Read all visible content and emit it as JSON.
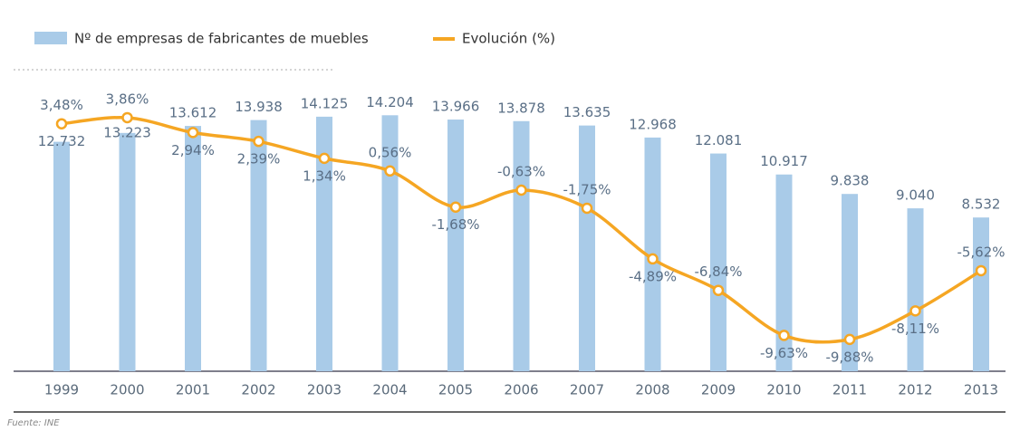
{
  "chart_data": {
    "type": "bar_line",
    "categories": [
      "1999",
      "2000",
      "2001",
      "2002",
      "2003",
      "2004",
      "2005",
      "2006",
      "2007",
      "2008",
      "2009",
      "2010",
      "2011",
      "2012",
      "2013"
    ],
    "series": [
      {
        "name": "Nº de empresas de fabricantes de muebles",
        "type": "bar",
        "color": "#a9cbe8",
        "values": [
          12732,
          13223,
          13612,
          13938,
          14125,
          14204,
          13966,
          13878,
          13635,
          12968,
          12081,
          10917,
          9838,
          9040,
          8532
        ],
        "value_labels": [
          "12.732",
          "13.223",
          "13.612",
          "13.938",
          "14.125",
          "14.204",
          "13.966",
          "13.878",
          "13.635",
          "12.968",
          "12.081",
          "10.917",
          "9.838",
          "9.040",
          "8.532"
        ]
      },
      {
        "name": "Evolución (%)",
        "type": "line",
        "axis": "y2",
        "color": "#f5a623",
        "values": [
          3.48,
          3.86,
          2.94,
          2.39,
          1.34,
          0.56,
          -1.68,
          -0.63,
          -1.75,
          -4.89,
          -6.84,
          -9.63,
          -9.88,
          -8.11,
          -5.62
        ],
        "value_labels": [
          "3,48%",
          "3,86%",
          "2,94%",
          "2,39%",
          "1,34%",
          "0,56%",
          "-1,68%",
          "-0,63%",
          "-1,75%",
          "-4,89%",
          "-6,84%",
          "-9,63%",
          "-9,88%",
          "-8,11%",
          "-5,62%"
        ]
      }
    ],
    "ylim": [
      0,
      20600
    ],
    "y2lim": [
      -11.85,
      11.15
    ],
    "source": "Fuente: INE"
  }
}
